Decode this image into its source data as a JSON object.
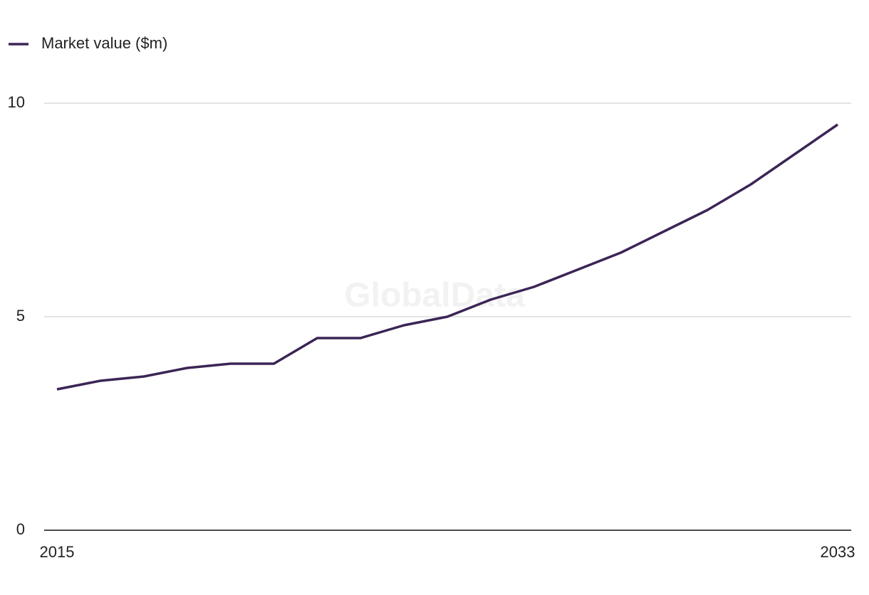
{
  "chart_data": {
    "type": "line",
    "legend": "top-left",
    "watermark": "GlobalData",
    "x": [
      2015,
      2016,
      2017,
      2018,
      2019,
      2020,
      2021,
      2022,
      2023,
      2024,
      2025,
      2026,
      2027,
      2028,
      2029,
      2030,
      2031,
      2032,
      2033
    ],
    "series": [
      {
        "name": "Market value ($m)",
        "color": "#3b2556",
        "values": [
          3.3,
          3.5,
          3.6,
          3.8,
          3.9,
          3.9,
          4.5,
          4.5,
          4.8,
          5.0,
          5.4,
          5.7,
          6.1,
          6.5,
          7.0,
          7.5,
          8.1,
          8.8,
          9.5
        ]
      }
    ],
    "xlim": [
      2015,
      2033
    ],
    "xticks": [
      2015,
      2033
    ],
    "ylim": [
      0,
      10
    ],
    "yticks": [
      0,
      5,
      10
    ],
    "grid": true
  }
}
